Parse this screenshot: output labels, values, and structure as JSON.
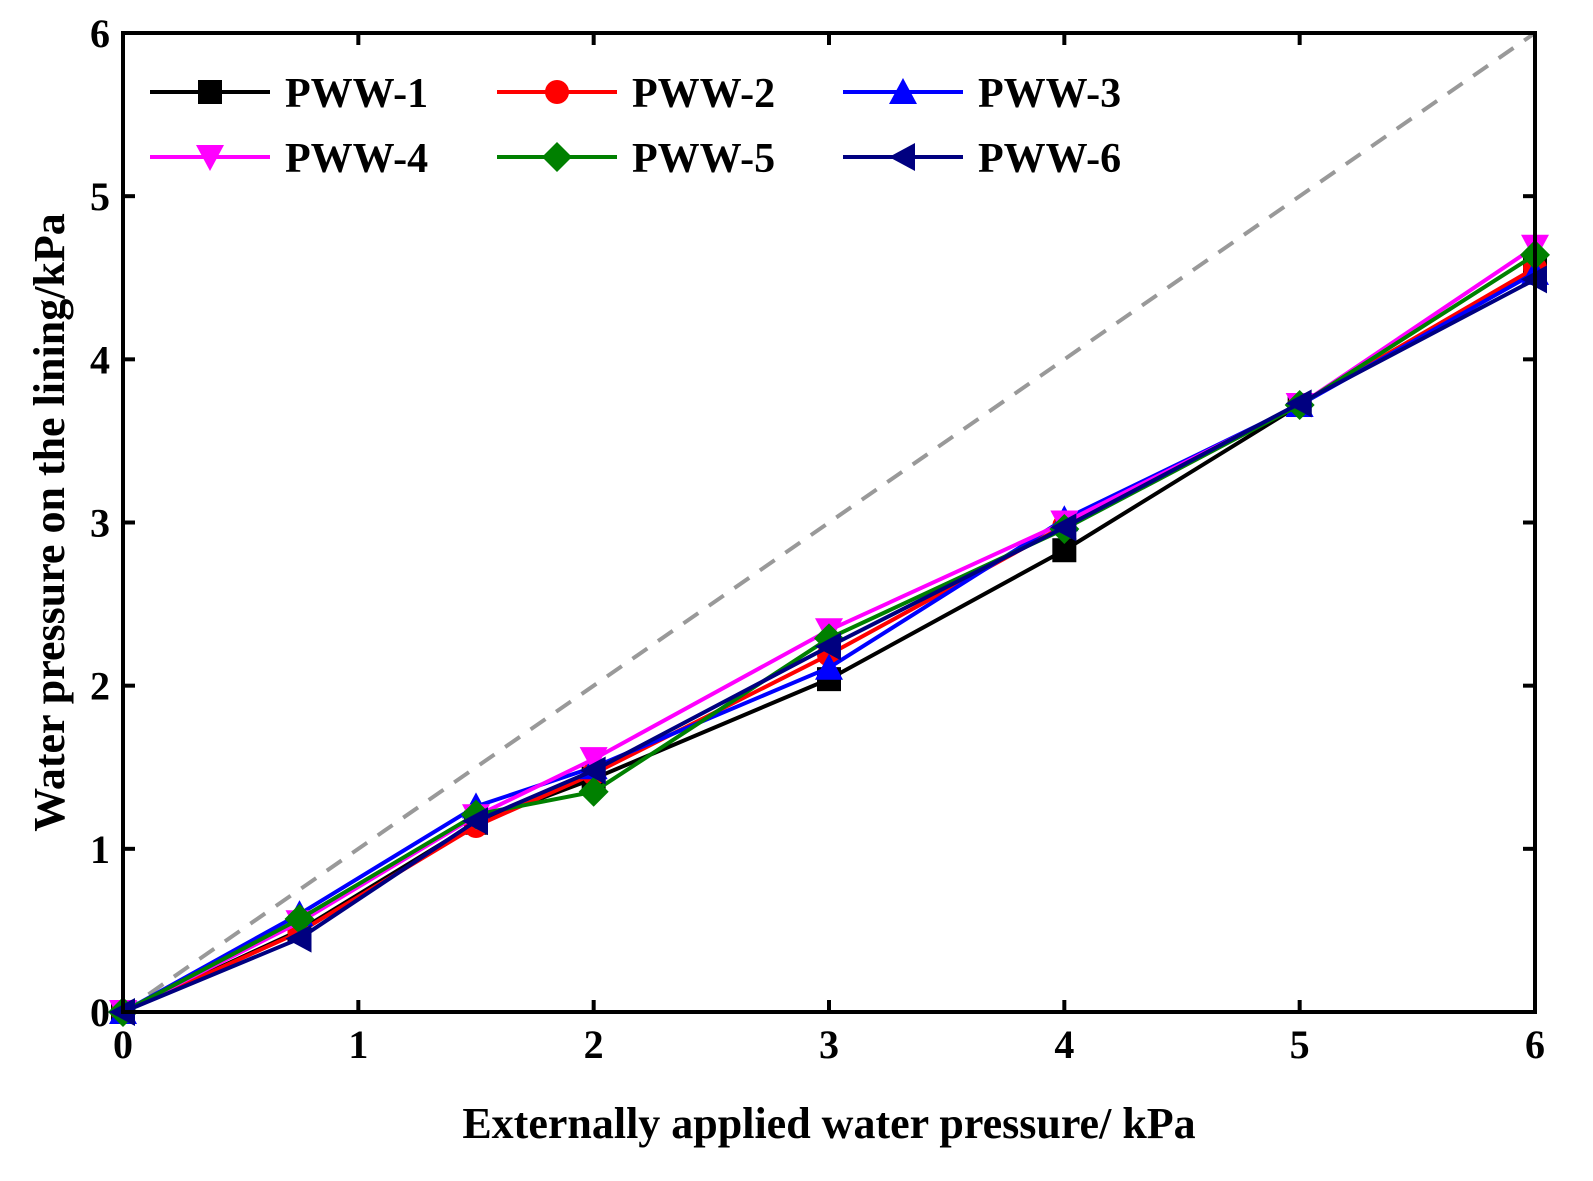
{
  "chart_data": {
    "type": "line",
    "title": "",
    "xlabel": "Externally applied water pressure/ kPa",
    "ylabel": "Water pressure on the lining/kPa",
    "xlim": [
      0,
      6
    ],
    "ylim": [
      0,
      6
    ],
    "xticks": [
      "0",
      "1",
      "2",
      "3",
      "4",
      "5",
      "6"
    ],
    "yticks": [
      "0",
      "1",
      "2",
      "3",
      "4",
      "5",
      "6"
    ],
    "grid": false,
    "legend_position": "top-left",
    "reference_line": {
      "name": "y = x",
      "color": "#999999",
      "style": "dashed",
      "x": [
        0,
        6
      ],
      "y": [
        0,
        6
      ]
    },
    "series": [
      {
        "name": "PWW-1",
        "color": "#000000",
        "marker": "square",
        "x": [
          0,
          0.75,
          1.5,
          2,
          3,
          4,
          5,
          6
        ],
        "y": [
          0,
          0.5,
          1.16,
          1.43,
          2.04,
          2.83,
          3.72,
          4.55
        ]
      },
      {
        "name": "PWW-2",
        "color": "#ff0000",
        "marker": "circle",
        "x": [
          0,
          0.75,
          1.5,
          2,
          3,
          4,
          5,
          6
        ],
        "y": [
          0,
          0.49,
          1.14,
          1.46,
          2.19,
          2.98,
          3.72,
          4.56
        ]
      },
      {
        "name": "PWW-3",
        "color": "#0000ff",
        "marker": "triangle-up",
        "x": [
          0,
          0.75,
          1.5,
          2,
          3,
          4,
          5,
          6
        ],
        "y": [
          0,
          0.6,
          1.26,
          1.5,
          2.11,
          3.02,
          3.72,
          4.53
        ]
      },
      {
        "name": "PWW-4",
        "color": "#ff00ff",
        "marker": "triangle-down",
        "x": [
          0,
          0.75,
          1.5,
          2,
          3,
          4,
          5,
          6
        ],
        "y": [
          0,
          0.55,
          1.2,
          1.55,
          2.34,
          3.0,
          3.72,
          4.69
        ]
      },
      {
        "name": "PWW-5",
        "color": "#008000",
        "marker": "diamond",
        "x": [
          0,
          0.75,
          1.5,
          2,
          3,
          4,
          5,
          6
        ],
        "y": [
          0,
          0.57,
          1.21,
          1.35,
          2.29,
          2.96,
          3.72,
          4.64
        ]
      },
      {
        "name": "PWW-6",
        "color": "#000080",
        "marker": "triangle-left",
        "x": [
          0,
          0.75,
          1.5,
          2,
          3,
          4,
          5,
          6
        ],
        "y": [
          0,
          0.45,
          1.17,
          1.48,
          2.24,
          2.97,
          3.73,
          4.49
        ]
      }
    ]
  }
}
